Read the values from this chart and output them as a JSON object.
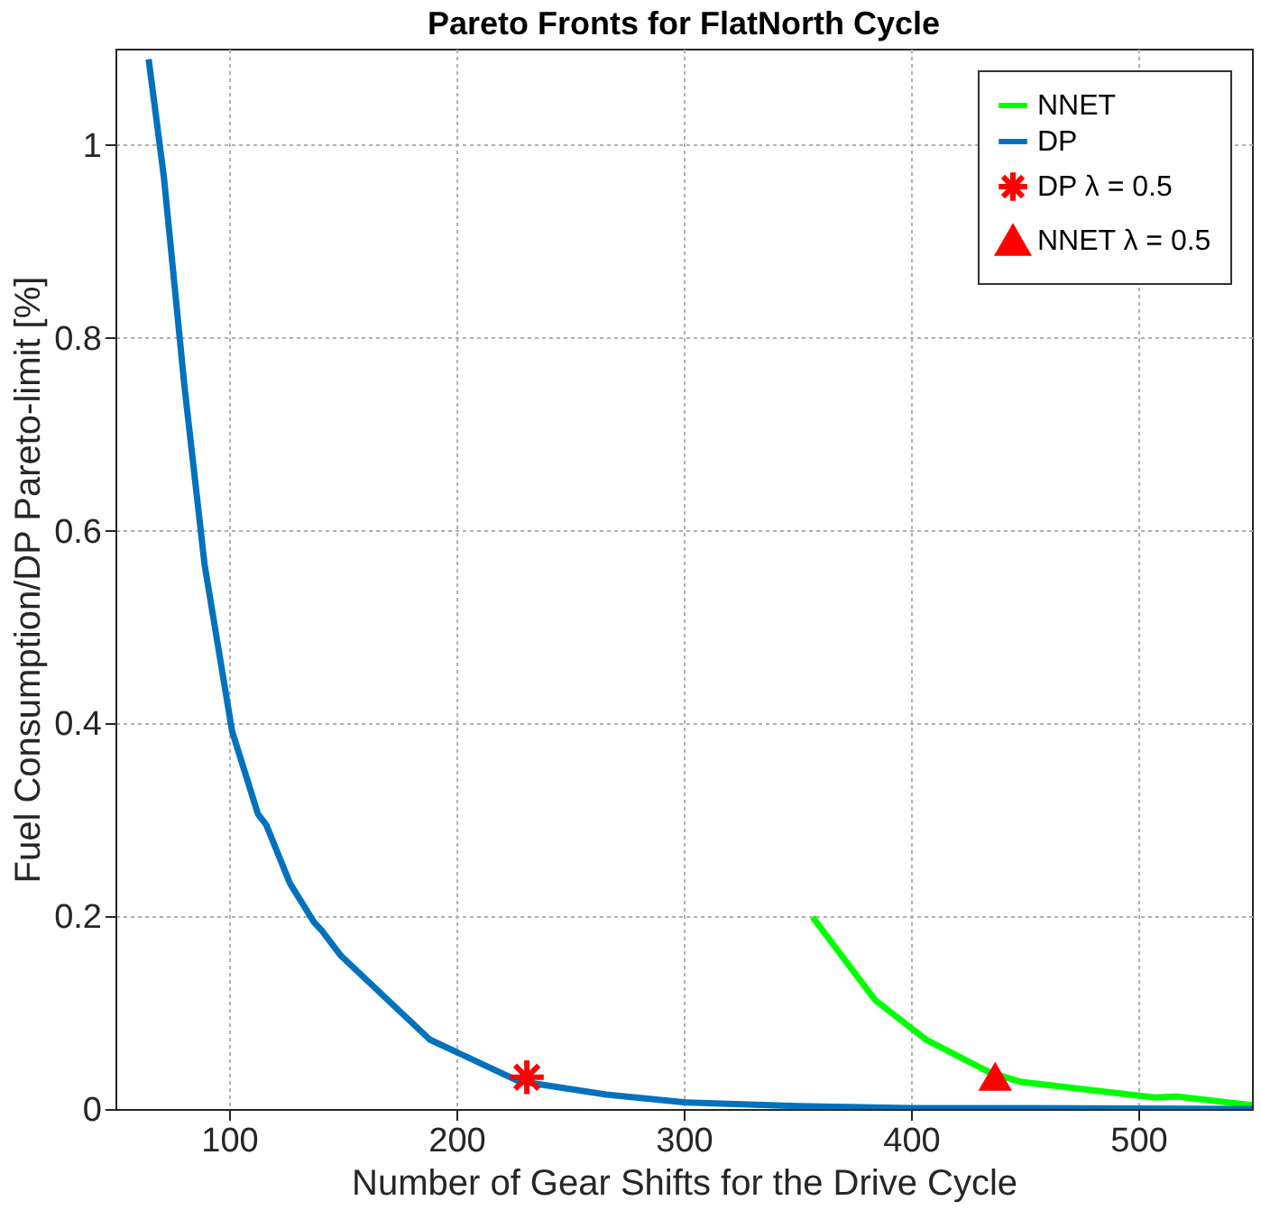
{
  "chart_data": {
    "type": "line",
    "title": "Pareto Fronts for FlatNorth Cycle",
    "xlabel": "Number of Gear Shifts for the Drive Cycle",
    "ylabel": "Fuel Consumption/DP Pareto-limit [%]",
    "xlim": [
      50,
      550
    ],
    "ylim": [
      0,
      1.1
    ],
    "xticks": [
      100,
      200,
      300,
      400,
      500
    ],
    "yticks": [
      {
        "value": 0,
        "label": "0"
      },
      0.2,
      0.4,
      0.6,
      0.8,
      {
        "value": 1,
        "label": "1"
      }
    ],
    "grid": true,
    "legend": "top right",
    "series": [
      {
        "name": "NNET",
        "color": "#00ff00",
        "marker": "none",
        "x": [
          356.7,
          384.2,
          406.6,
          434.6,
          448.6,
          507.4,
          517.2,
          550
        ],
        "values": [
          0.199,
          0.113,
          0.072,
          0.038,
          0.028,
          0.012,
          0.013,
          0.004
        ]
      },
      {
        "name": "DP",
        "color": "#0072bd",
        "marker": "none",
        "x": [
          64.6,
          71.3,
          80.3,
          89.2,
          101.3,
          112.7,
          116.3,
          126.8,
          137.3,
          140.8,
          149.2,
          188.3,
          227.3,
          266,
          300,
          350,
          400,
          450,
          550
        ],
        "values": [
          1.089,
          0.967,
          0.751,
          0.565,
          0.392,
          0.306,
          0.295,
          0.234,
          0.194,
          0.185,
          0.159,
          0.072,
          0.029,
          0.015,
          0.007,
          0.003,
          0.001,
          0.001,
          0
        ]
      },
      {
        "name": "DP λ = 0.5",
        "type": "scatter",
        "color": "#ff0000",
        "marker": "cross",
        "x": [
          231
        ],
        "values": [
          0.033
        ]
      },
      {
        "name": "NNET λ = 0.5",
        "type": "scatter",
        "color": "#ff0000",
        "marker": "triangle",
        "x": [
          437
        ],
        "values": [
          0.034
        ]
      }
    ]
  }
}
